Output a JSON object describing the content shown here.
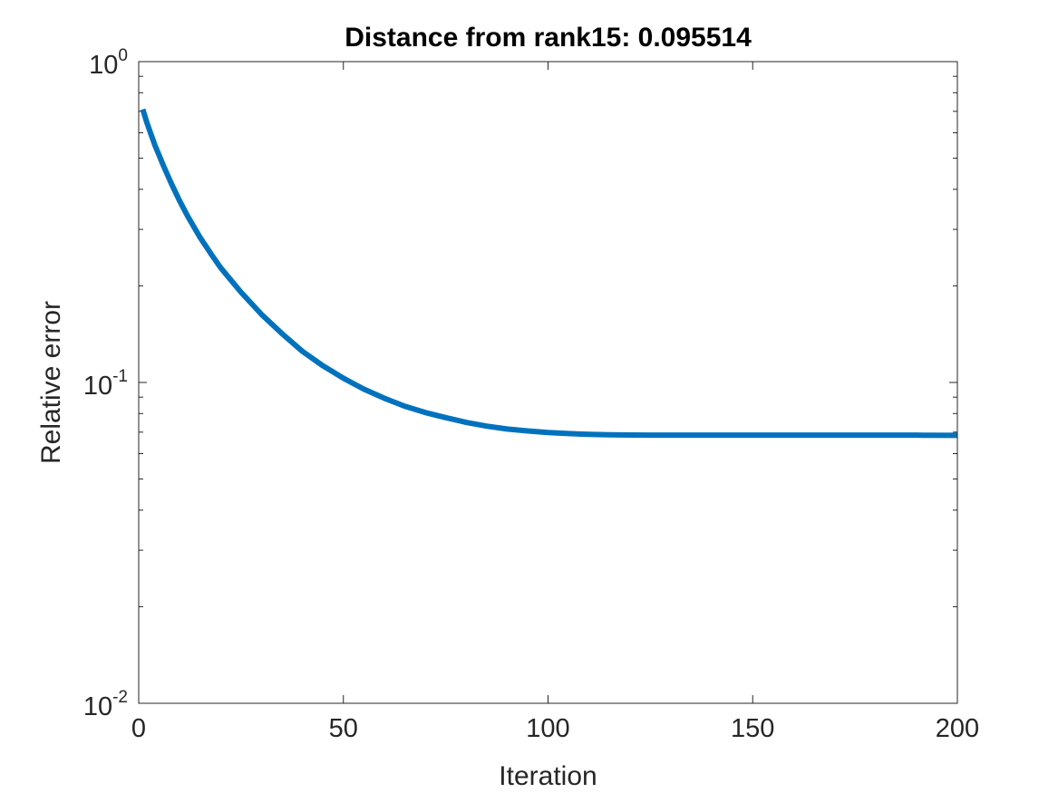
{
  "chart_data": {
    "type": "line",
    "title": "Distance from rank15: 0.095514",
    "xlabel": "Iteration",
    "ylabel": "Relative error",
    "xlim": [
      0,
      200
    ],
    "ylim": [
      0.01,
      1
    ],
    "y_scale": "log",
    "x_ticks": [
      0,
      50,
      100,
      150,
      200
    ],
    "x_tick_labels": [
      "0",
      "50",
      "100",
      "150",
      "200"
    ],
    "y_ticks": [
      0.01,
      0.1,
      1
    ],
    "y_tick_labels": [
      {
        "base": "10",
        "exp": "-2"
      },
      {
        "base": "10",
        "exp": "-1"
      },
      {
        "base": "10",
        "exp": "0"
      }
    ],
    "grid": false,
    "box": true,
    "series": [
      {
        "color": "#0072bd",
        "x": [
          1,
          2,
          3,
          4,
          5,
          6,
          8,
          10,
          12,
          15,
          18,
          20,
          25,
          30,
          35,
          40,
          45,
          50,
          55,
          60,
          65,
          70,
          75,
          80,
          85,
          90,
          95,
          100,
          105,
          110,
          115,
          120,
          125,
          130,
          140,
          150,
          160,
          170,
          180,
          190,
          200
        ],
        "y": [
          0.71,
          0.645,
          0.594,
          0.547,
          0.51,
          0.475,
          0.416,
          0.368,
          0.329,
          0.283,
          0.248,
          0.228,
          0.191,
          0.163,
          0.142,
          0.125,
          0.1127,
          0.1031,
          0.0953,
          0.0893,
          0.0843,
          0.0806,
          0.0777,
          0.0751,
          0.0731,
          0.0716,
          0.0706,
          0.0698,
          0.0693,
          0.0689,
          0.0687,
          0.0686,
          0.0685,
          0.0685,
          0.0685,
          0.0685,
          0.0685,
          0.0685,
          0.0685,
          0.0685,
          0.0684
        ]
      }
    ]
  }
}
